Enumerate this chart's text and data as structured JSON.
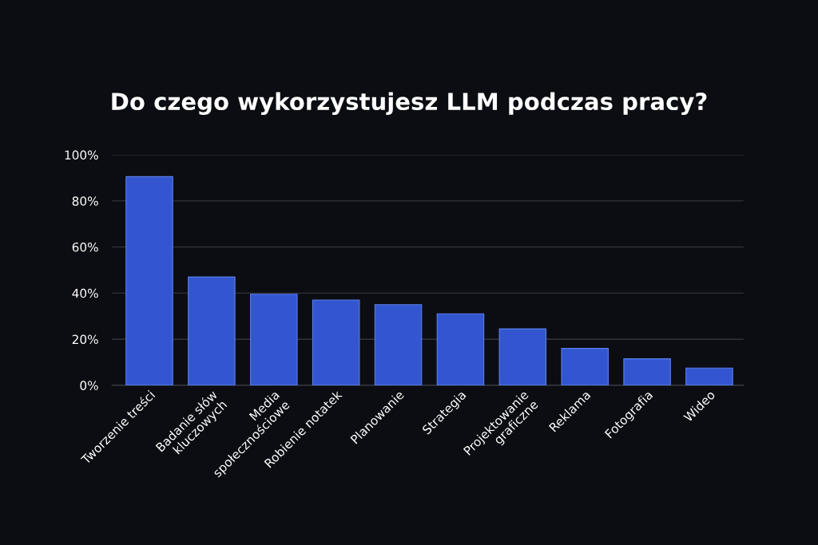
{
  "chart_data": {
    "type": "bar",
    "title": "Do czego wykorzystujesz LLM podczas pracy?",
    "categories": [
      "Tworzenie treści",
      "Badanie słów\nkluczowych",
      "Media\nspołecznościowe",
      "Robienie notatek",
      "Planowanie",
      "Strategia",
      "Projektowanie\ngraficzne",
      "Reklama",
      "Fotografia",
      "Wideo"
    ],
    "values": [
      90.5,
      47,
      39.5,
      37,
      35,
      31,
      24.5,
      16,
      11.5,
      7.5
    ],
    "color": "#3356d0",
    "ylim": [
      0,
      100
    ],
    "yticks": [
      {
        "value": 0,
        "label": "0%"
      },
      {
        "value": 20,
        "label": "20%"
      },
      {
        "value": 40,
        "label": "40%"
      },
      {
        "value": 60,
        "label": "60%"
      },
      {
        "value": 80,
        "label": "80%"
      },
      {
        "value": 100,
        "label": "100%"
      }
    ],
    "grid": "y"
  }
}
